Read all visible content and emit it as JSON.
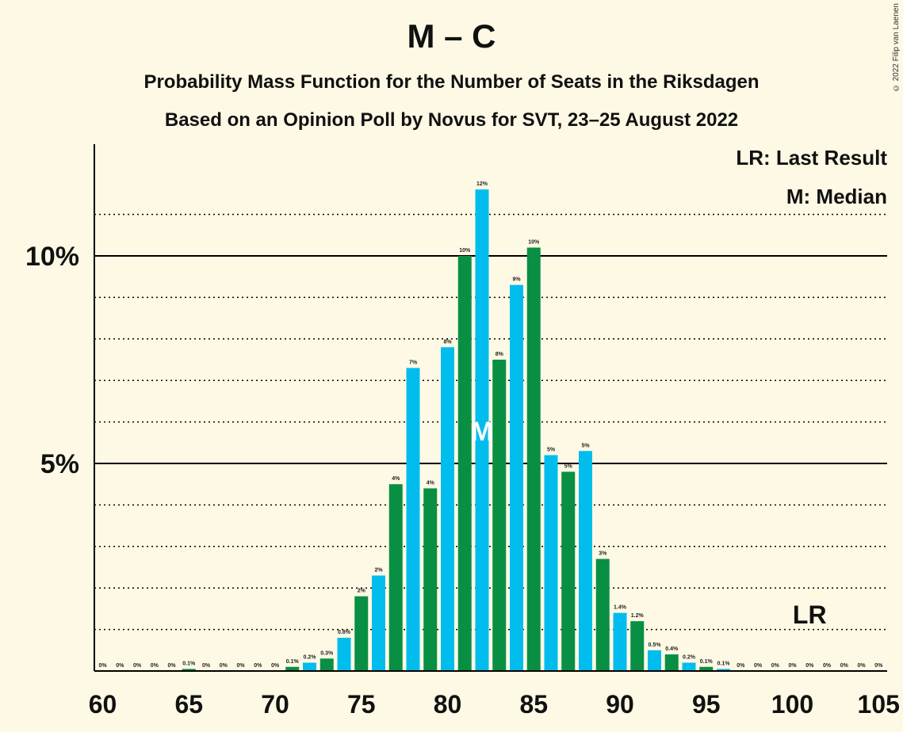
{
  "title": "M – C",
  "subtitle1": "Probability Mass Function for the Number of Seats in the Riksdagen",
  "subtitle2": "Based on an Opinion Poll by Novus for SVT, 23–25 August 2022",
  "copyright": "© 2022 Filip van Laenen",
  "legend": {
    "last_result": "LR: Last Result",
    "median": "M: Median"
  },
  "markers": {
    "median_label": "M",
    "median_seat": 82,
    "last_result_label": "LR",
    "last_result_seat": 101
  },
  "colors": {
    "blue": "#00BDEE",
    "green": "#098F43",
    "background": "#FEF9E4"
  },
  "chart_data": {
    "type": "bar",
    "x": [
      60,
      61,
      62,
      63,
      64,
      65,
      66,
      67,
      68,
      69,
      70,
      71,
      72,
      73,
      74,
      75,
      76,
      77,
      78,
      79,
      80,
      81,
      82,
      83,
      84,
      85,
      86,
      87,
      88,
      89,
      90,
      91,
      92,
      93,
      94,
      95,
      96,
      97,
      98,
      99,
      100,
      101,
      102,
      103,
      104,
      105
    ],
    "values": [
      0,
      0,
      0,
      0,
      0,
      0.05,
      0,
      0,
      0,
      0,
      0,
      0.1,
      0.2,
      0.3,
      0.8,
      1.8,
      2.3,
      4.5,
      7.3,
      4.4,
      7.8,
      10.0,
      11.6,
      7.5,
      9.3,
      10.2,
      5.2,
      4.8,
      5.3,
      2.7,
      1.4,
      1.2,
      0.5,
      0.4,
      0.2,
      0.1,
      0.05,
      0,
      0,
      0,
      0,
      0,
      0,
      0,
      0,
      0
    ],
    "data_labels": [
      "0%",
      "0%",
      "0%",
      "0%",
      "0%",
      "0.1%",
      "0%",
      "0%",
      "0%",
      "0%",
      "0%",
      "0.1%",
      "0.2%",
      "0.3%",
      "0.8%",
      "2%",
      "2%",
      "4%",
      "7%",
      "4%",
      "8%",
      "10%",
      "12%",
      "8%",
      "9%",
      "10%",
      "5%",
      "5%",
      "5%",
      "3%",
      "1.4%",
      "1.2%",
      "0.5%",
      "0.4%",
      "0.2%",
      "0.1%",
      "0.1%",
      "0%",
      "0%",
      "0%",
      "0%",
      "0%",
      "0%",
      "0%",
      "0%",
      "0%"
    ],
    "x_ticks": [
      "60",
      "65",
      "70",
      "75",
      "80",
      "85",
      "90",
      "95",
      "100",
      "105"
    ],
    "y_ticks": [
      "5%",
      "10%"
    ],
    "xlim": [
      60,
      105
    ],
    "ylim": [
      0,
      12.6
    ],
    "grid": "dotted lines every 1%, solid at 5% and 10%"
  }
}
